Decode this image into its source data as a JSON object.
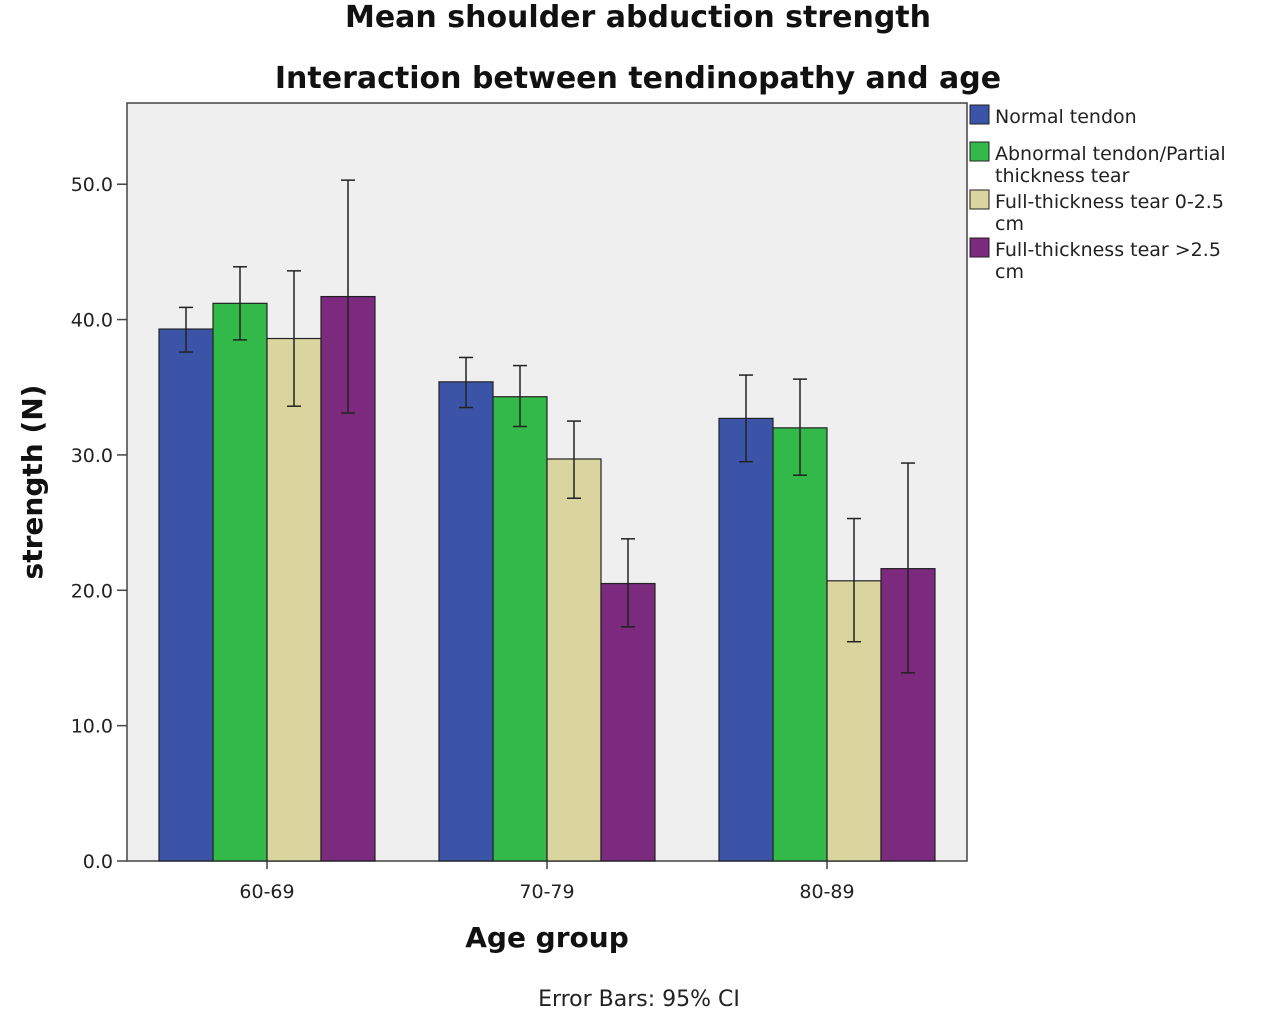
{
  "chart_data": {
    "type": "bar",
    "title": "Mean shoulder abduction strength",
    "subtitle": "Interaction between tendinopathy and age",
    "xlabel": "Age group",
    "ylabel": "strength (N)",
    "ylim": [
      0,
      56
    ],
    "yticks": [
      "0.0",
      "10.0",
      "20.0",
      "30.0",
      "40.0",
      "50.0"
    ],
    "categories": [
      "60-69",
      "70-79",
      "80-89"
    ],
    "grid": false,
    "legend_position": "right",
    "footnote": "Error Bars: 95% CI",
    "series": [
      {
        "name_lines": [
          "Normal tendon"
        ],
        "color": "#3b54a8",
        "values": [
          39.3,
          35.4,
          32.7
        ],
        "ci_low": [
          37.6,
          33.5,
          29.5
        ],
        "ci_high": [
          40.9,
          37.2,
          35.9
        ]
      },
      {
        "name_lines": [
          "Abnormal tendon/Partial",
          "thickness tear"
        ],
        "color": "#33b84a",
        "values": [
          41.2,
          34.3,
          32.0
        ],
        "ci_low": [
          38.5,
          32.1,
          28.5
        ],
        "ci_high": [
          43.9,
          36.6,
          35.6
        ]
      },
      {
        "name_lines": [
          "Full-thickness tear 0-2.5",
          "cm"
        ],
        "color": "#dad59e",
        "values": [
          38.6,
          29.7,
          20.7
        ],
        "ci_low": [
          33.6,
          26.8,
          16.2
        ],
        "ci_high": [
          43.6,
          32.5,
          25.3
        ]
      },
      {
        "name_lines": [
          "Full-thickness tear >2.5",
          "cm"
        ],
        "color": "#7b2a7d",
        "values": [
          41.7,
          20.5,
          21.6
        ],
        "ci_low": [
          33.1,
          17.3,
          13.9
        ],
        "ci_high": [
          50.3,
          23.8,
          29.4
        ]
      }
    ]
  }
}
